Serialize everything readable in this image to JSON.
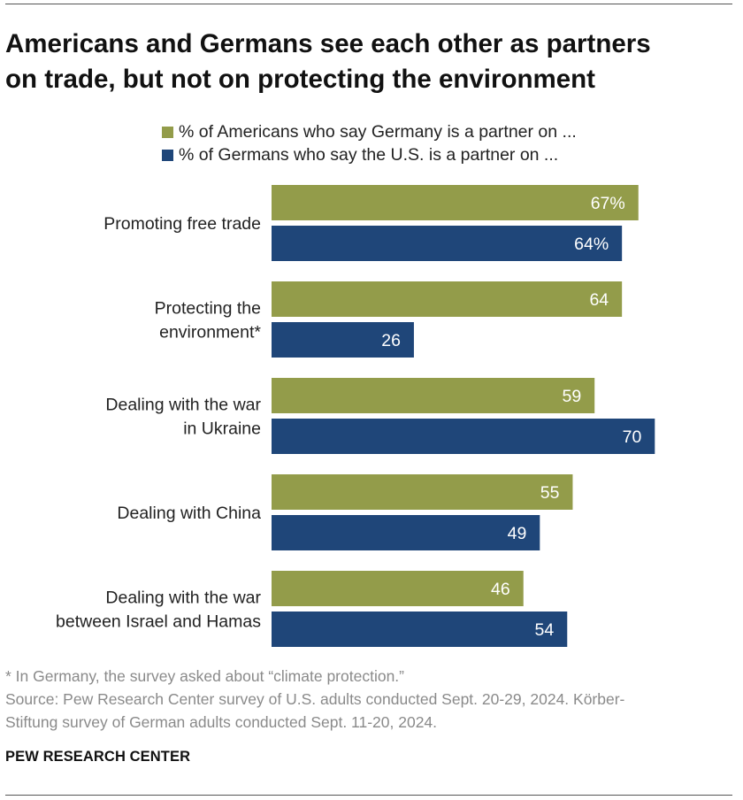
{
  "title_lines": [
    "Americans and Germans see each other as partners",
    "on trade, but not on protecting the environment"
  ],
  "legend": [
    {
      "label": "% of Americans who say Germany is a partner on ...",
      "color": "#939c4a"
    },
    {
      "label": "% of Germans who say the U.S. is a partner on ...",
      "color": "#1f4679"
    }
  ],
  "chart_data": {
    "type": "bar",
    "orientation": "horizontal",
    "categories": [
      [
        "Promoting free trade"
      ],
      [
        "Protecting the",
        "environment*"
      ],
      [
        "Dealing with the war",
        "in Ukraine"
      ],
      [
        "Dealing with China"
      ],
      [
        "Dealing with the war",
        "between Israel and Hamas"
      ]
    ],
    "series": [
      {
        "name": "% of Americans who say Germany is a partner on ...",
        "values": [
          67,
          64,
          59,
          55,
          46
        ],
        "color": "#939c4a"
      },
      {
        "name": "% of Germans who say the U.S. is a partner on ...",
        "values": [
          64,
          26,
          70,
          49,
          54
        ],
        "color": "#1f4679"
      }
    ],
    "data_labels": [
      [
        "67%",
        "64",
        "59",
        "55",
        "46"
      ],
      [
        "64%",
        "26",
        "70",
        "49",
        "54"
      ]
    ],
    "xlim": [
      0,
      100
    ],
    "grid": false
  },
  "footer": {
    "note": "* In Germany, the survey asked about “climate protection.”",
    "source_line1": "Source: Pew Research Center survey of U.S. adults conducted Sept. 20-29, 2024. Körber-",
    "source_line2": "Stiftung survey of German adults conducted Sept. 11-20, 2024."
  },
  "brand": "PEW RESEARCH CENTER"
}
